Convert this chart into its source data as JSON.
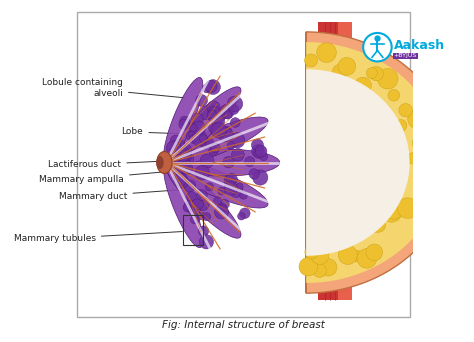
{
  "title": "Fig: Internal structure of breast",
  "background_color": "#ffffff",
  "border_color": "#cccccc",
  "skin_color": "#F4A57A",
  "fat_color": "#F5D56E",
  "lobe_color": "#8B45B0",
  "duct_color": "#D2691E",
  "chest_muscle": "#CC3333",
  "chest_skin": "#E8604C",
  "logo_color": "#00AADD",
  "logo_text": "Aakash",
  "logo_subtext": "+BYJUS"
}
